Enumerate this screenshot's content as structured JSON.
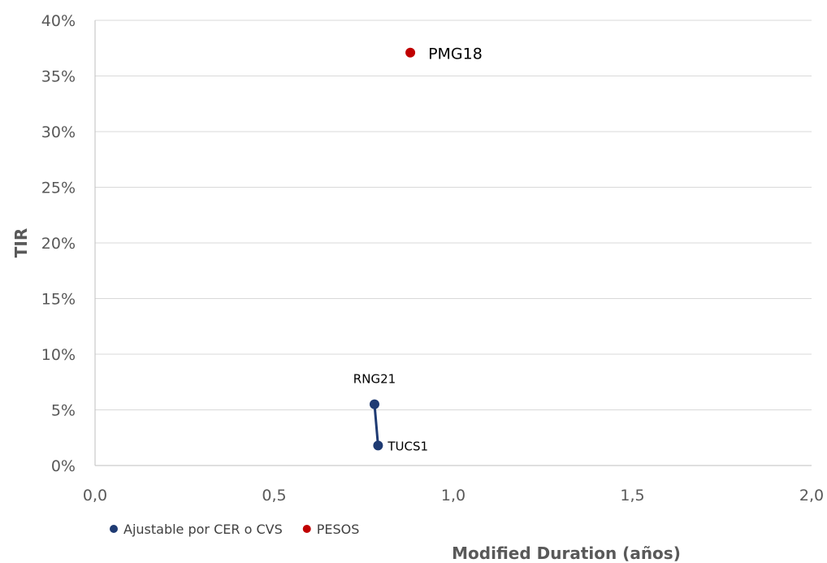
{
  "chart_data": {
    "type": "scatter",
    "title": "",
    "xlabel": "Modified Duration (años)",
    "ylabel": "TIR",
    "xlim": [
      0,
      2
    ],
    "ylim": [
      0,
      0.4
    ],
    "x_ticks": [
      "0,0",
      "0,5",
      "1,0",
      "1,5",
      "2,0"
    ],
    "x_tick_values": [
      0,
      0.5,
      1.0,
      1.5,
      2.0
    ],
    "y_ticks": [
      "0%",
      "5%",
      "10%",
      "15%",
      "20%",
      "25%",
      "30%",
      "35%",
      "40%"
    ],
    "y_tick_values": [
      0,
      0.05,
      0.1,
      0.15,
      0.2,
      0.25,
      0.3,
      0.35,
      0.4
    ],
    "grid": "horizontal",
    "legend_position": "bottom-left",
    "series": [
      {
        "name": "Ajustable por CER o CVS",
        "color": "#1f3b73",
        "connected": true,
        "points": [
          {
            "label": "RNG21",
            "x": 0.78,
            "y": 0.055
          },
          {
            "label": "TUCS1",
            "x": 0.79,
            "y": 0.018
          }
        ]
      },
      {
        "name": "PESOS",
        "color": "#c00000",
        "connected": false,
        "points": [
          {
            "label": "PMG18",
            "x": 0.88,
            "y": 0.371
          }
        ]
      }
    ]
  }
}
